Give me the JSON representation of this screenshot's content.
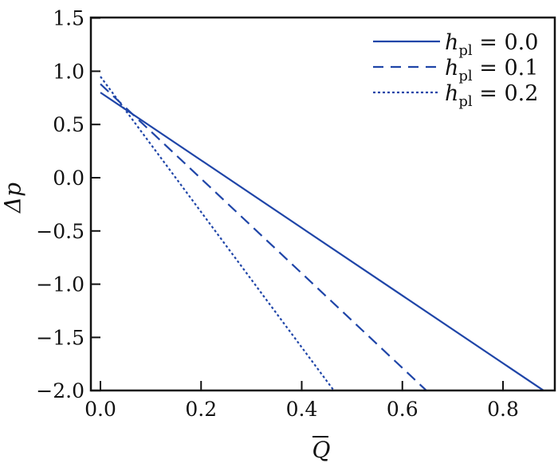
{
  "chart_data": {
    "type": "line",
    "title": "",
    "xlabel": "Q̄",
    "ylabel": "Δp",
    "xlim": [
      -0.02,
      0.9
    ],
    "ylim": [
      -2.0,
      1.5
    ],
    "xticks": [
      0.0,
      0.2,
      0.4,
      0.6,
      0.8
    ],
    "xtick_labels": [
      "0.0",
      "0.2",
      "0.4",
      "0.6",
      "0.8"
    ],
    "yticks": [
      1.5,
      1.0,
      0.5,
      0.0,
      -0.5,
      -1.0,
      -1.5,
      -2.0
    ],
    "ytick_labels": [
      "1.5",
      "1.0",
      "0.5",
      "0.0",
      "−0.5",
      "−1.0",
      "−1.5",
      "−2.0"
    ],
    "grid": false,
    "legend_position": "upper right",
    "line_color": "#1f45a8",
    "series": [
      {
        "name": "h_pl = 0.0",
        "legend_symbol": "h",
        "legend_sub": "pl",
        "legend_value": "= 0.0",
        "style": "solid",
        "x": [
          0.0,
          0.881
        ],
        "y": [
          0.8,
          -2.0
        ]
      },
      {
        "name": "h_pl = 0.1",
        "legend_symbol": "h",
        "legend_sub": "pl",
        "legend_value": "= 0.1",
        "style": "dashed",
        "x": [
          0.0,
          0.648
        ],
        "y": [
          0.88,
          -2.0
        ]
      },
      {
        "name": "h_pl = 0.2",
        "legend_symbol": "h",
        "legend_sub": "pl",
        "legend_value": "= 0.2",
        "style": "dotted",
        "x": [
          0.0,
          0.464
        ],
        "y": [
          0.95,
          -2.0
        ]
      }
    ]
  }
}
